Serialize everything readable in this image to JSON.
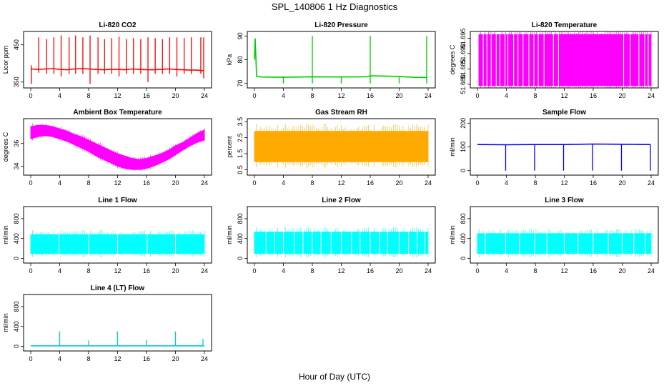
{
  "figure": {
    "title": "SPL_140806  1 Hz Diagnostics",
    "xlabel": "Hour of Day (UTC)"
  },
  "chart_data": [
    {
      "id": "co2",
      "type": "line",
      "title": "Li-820 CO2",
      "ylabel": "Licor ppm",
      "color": "#ff0000",
      "xlim": [
        0,
        24
      ],
      "xticks": [
        0,
        4,
        8,
        12,
        16,
        20,
        24
      ],
      "ylim": [
        340,
        480
      ],
      "yticks": [
        350,
        450
      ],
      "series": [
        {
          "x": [
            0,
            0.2,
            1,
            2,
            3,
            4,
            5,
            6,
            7,
            8,
            9,
            10,
            11,
            12,
            13,
            14,
            15,
            16,
            17,
            18,
            19,
            20,
            21,
            22,
            23,
            23.9
          ],
          "values": [
            385,
            385,
            384,
            385,
            386,
            384,
            383,
            385,
            386,
            385,
            384,
            383,
            384,
            384,
            383,
            385,
            384,
            383,
            383,
            384,
            385,
            384,
            383,
            382,
            382,
            380
          ]
        }
      ],
      "spikes": [
        {
          "x": 0.1,
          "high": 395,
          "low": 345
        },
        {
          "x": 1.1,
          "high": 470,
          "low": 375
        },
        {
          "x": 2.2,
          "high": 465,
          "low": 372
        },
        {
          "x": 3.2,
          "high": 470,
          "low": 372
        },
        {
          "x": 4.2,
          "high": 475,
          "low": 365
        },
        {
          "x": 5.3,
          "high": 470,
          "low": 372
        },
        {
          "x": 6.2,
          "high": 475,
          "low": 372
        },
        {
          "x": 7.2,
          "high": 470,
          "low": 372
        },
        {
          "x": 8.2,
          "high": 475,
          "low": 345
        },
        {
          "x": 9.3,
          "high": 470,
          "low": 372
        },
        {
          "x": 10.2,
          "high": 465,
          "low": 372
        },
        {
          "x": 11.2,
          "high": 468,
          "low": 372
        },
        {
          "x": 12.2,
          "high": 472,
          "low": 365
        },
        {
          "x": 13.2,
          "high": 465,
          "low": 372
        },
        {
          "x": 14.2,
          "high": 468,
          "low": 372
        },
        {
          "x": 15.2,
          "high": 465,
          "low": 372
        },
        {
          "x": 16.2,
          "high": 470,
          "low": 350
        },
        {
          "x": 17.2,
          "high": 468,
          "low": 372
        },
        {
          "x": 18.2,
          "high": 465,
          "low": 372
        },
        {
          "x": 19.2,
          "high": 470,
          "low": 372
        },
        {
          "x": 20.2,
          "high": 470,
          "low": 365
        },
        {
          "x": 21.2,
          "high": 468,
          "low": 372
        },
        {
          "x": 22.2,
          "high": 470,
          "low": 372
        },
        {
          "x": 23.5,
          "high": 470,
          "low": 372
        },
        {
          "x": 23.9,
          "high": 470,
          "low": 360
        }
      ]
    },
    {
      "id": "pressure",
      "type": "line",
      "title": "Li-820 Pressure",
      "ylabel": "kPa",
      "color": "#00cc00",
      "xlim": [
        0,
        24
      ],
      "xticks": [
        0,
        4,
        8,
        12,
        16,
        20,
        24
      ],
      "ylim": [
        69,
        91
      ],
      "yticks": [
        70,
        80,
        90
      ],
      "series": [
        {
          "x": [
            0,
            0.1,
            0.3,
            1,
            4,
            8,
            12,
            15.5,
            16,
            18,
            20,
            22,
            23.9
          ],
          "values": [
            80,
            89,
            73,
            72.7,
            72.6,
            72.8,
            72.7,
            72.8,
            73.2,
            73.1,
            72.9,
            72.6,
            72.5
          ]
        }
      ],
      "spikes": [
        {
          "x": 4,
          "high": 73,
          "low": 70
        },
        {
          "x": 8,
          "high": 90,
          "low": 70
        },
        {
          "x": 12,
          "high": 73,
          "low": 70
        },
        {
          "x": 16,
          "high": 90,
          "low": 70
        },
        {
          "x": 20,
          "high": 73,
          "low": 70
        },
        {
          "x": 23.8,
          "high": 90,
          "low": 70
        }
      ]
    },
    {
      "id": "li_temp",
      "type": "area",
      "title": "Li-820 Temperature",
      "ylabel": "degrees C",
      "color": "#ff00ff",
      "xlim": [
        0,
        24
      ],
      "xticks": [
        0,
        4,
        8,
        12,
        16,
        20,
        24
      ],
      "ylim": [
        51.6795,
        51.6965
      ],
      "yticks": [
        51.68,
        51.685,
        51.69,
        51.695
      ],
      "series": [
        {
          "x": [
            0.2,
            24
          ],
          "values": [
            51.6962,
            51.6962
          ]
        }
      ],
      "gaps": [
        0.8,
        1.3,
        1.9,
        2.6,
        3.1,
        3.8,
        4.2,
        5.0,
        5.6,
        6.3,
        7.1,
        7.8,
        8.4,
        9.2,
        10.5,
        11.2,
        20.2,
        21.1,
        22.3,
        23.1,
        23.6
      ]
    },
    {
      "id": "ambient",
      "type": "area",
      "title": "Ambient Box Temperature",
      "ylabel": "degrees C",
      "color": "#ff00ff",
      "xlim": [
        0,
        24
      ],
      "xticks": [
        0,
        4,
        8,
        12,
        16,
        20,
        24
      ],
      "ylim": [
        33.4,
        38.0
      ],
      "yticks": [
        34,
        36
      ],
      "series": [
        {
          "name": "upper",
          "x": [
            0,
            1,
            2,
            3,
            4,
            5,
            6,
            7,
            8,
            9,
            10,
            11,
            12,
            13,
            14,
            15,
            16,
            17,
            18,
            19,
            20,
            21,
            22,
            23,
            24
          ],
          "values": [
            37.5,
            37.6,
            37.6,
            37.5,
            37.3,
            37.1,
            36.8,
            36.6,
            36.3,
            36.0,
            35.7,
            35.4,
            35.1,
            34.9,
            34.7,
            34.6,
            34.7,
            34.9,
            35.1,
            35.4,
            35.8,
            36.1,
            36.5,
            36.9,
            37.2
          ]
        },
        {
          "name": "lower",
          "x": [
            0,
            1,
            2,
            3,
            4,
            5,
            6,
            7,
            8,
            9,
            10,
            11,
            12,
            13,
            14,
            15,
            16,
            17,
            18,
            19,
            20,
            21,
            22,
            23,
            24
          ],
          "values": [
            36.4,
            36.6,
            36.7,
            36.6,
            36.4,
            36.2,
            35.9,
            35.6,
            35.3,
            34.9,
            34.6,
            34.3,
            34.0,
            33.8,
            33.7,
            33.7,
            33.8,
            34.0,
            34.3,
            34.6,
            35.0,
            35.4,
            35.8,
            36.1,
            36.3
          ]
        }
      ]
    },
    {
      "id": "rh",
      "type": "area",
      "title": "Gas Stream RH",
      "ylabel": "percent",
      "color": "#ffaa00",
      "xlim": [
        0,
        24
      ],
      "xticks": [
        0,
        4,
        8,
        12,
        16,
        20,
        24
      ],
      "ylim": [
        0.3,
        3.55
      ],
      "yticks": [
        0.5,
        1.5,
        2.5,
        3.5
      ],
      "series": [
        {
          "name": "upper",
          "x": [
            0,
            24
          ],
          "values": [
            2.9,
            2.9
          ]
        },
        {
          "name": "lower",
          "x": [
            0,
            24
          ],
          "values": [
            1.0,
            1.0
          ]
        }
      ]
    },
    {
      "id": "sample_flow",
      "type": "line",
      "title": "Sample Flow",
      "ylabel": "ml/min",
      "color": "#0000ff",
      "xlim": [
        0,
        24
      ],
      "xticks": [
        0,
        4,
        8,
        12,
        16,
        20,
        24
      ],
      "ylim": [
        -10,
        210
      ],
      "yticks": [
        0,
        100,
        200
      ],
      "series": [
        {
          "x": [
            0,
            4,
            8,
            12,
            16,
            20,
            23.9
          ],
          "values": [
            110,
            109,
            110,
            110,
            112,
            111,
            110
          ]
        }
      ],
      "spikes": [
        {
          "x": 3.9,
          "high": 110,
          "low": 0
        },
        {
          "x": 7.9,
          "high": 110,
          "low": 0
        },
        {
          "x": 11.9,
          "high": 110,
          "low": 0
        },
        {
          "x": 15.9,
          "high": 110,
          "low": 0
        },
        {
          "x": 19.9,
          "high": 110,
          "low": 0
        },
        {
          "x": 23.9,
          "high": 110,
          "low": 0
        }
      ]
    },
    {
      "id": "line1",
      "type": "area",
      "title": "Line 1 Flow",
      "ylabel": "ml/min",
      "color": "#00ffff",
      "xlim": [
        0,
        24
      ],
      "xticks": [
        0,
        4,
        8,
        12,
        16,
        20,
        24
      ],
      "ylim": [
        -50,
        1000
      ],
      "yticks": [
        0,
        400,
        800
      ],
      "series": [
        {
          "name": "upper",
          "x": [
            0,
            24
          ],
          "values": [
            480,
            480
          ]
        },
        {
          "name": "lower",
          "x": [
            0,
            24
          ],
          "values": [
            100,
            100
          ]
        }
      ],
      "gaps": [
        3.9,
        8.0,
        12.0,
        16.1,
        20.0
      ]
    },
    {
      "id": "line2",
      "type": "area",
      "title": "Line 2 Flow",
      "ylabel": "ml/min",
      "color": "#00ffff",
      "xlim": [
        0,
        24
      ],
      "xticks": [
        0,
        4,
        8,
        12,
        16,
        20,
        24
      ],
      "ylim": [
        -50,
        1000
      ],
      "yticks": [
        0,
        400,
        800
      ],
      "series": [
        {
          "name": "upper",
          "x": [
            0,
            24
          ],
          "values": [
            530,
            530
          ]
        },
        {
          "name": "lower",
          "x": [
            0,
            24
          ],
          "values": [
            100,
            100
          ]
        }
      ],
      "gaps": [
        1.6,
        2.8,
        4.0,
        5.5,
        6.7,
        8.0,
        9.2,
        10.6,
        12.0,
        13.4,
        14.6,
        16.0,
        17.3,
        18.4,
        20.0,
        21.3,
        22.5,
        23.5
      ]
    },
    {
      "id": "line3",
      "type": "area",
      "title": "Line 3 Flow",
      "ylabel": "ml/min",
      "color": "#00ffff",
      "xlim": [
        0,
        24
      ],
      "xticks": [
        0,
        4,
        8,
        12,
        16,
        20,
        24
      ],
      "ylim": [
        -50,
        1000
      ],
      "yticks": [
        0,
        400,
        800
      ],
      "series": [
        {
          "name": "upper",
          "x": [
            0,
            24
          ],
          "values": [
            500,
            500
          ]
        },
        {
          "name": "lower",
          "x": [
            0,
            24
          ],
          "values": [
            100,
            100
          ]
        }
      ],
      "gaps": [
        1.1,
        3.9,
        5.8,
        7.9,
        9.6,
        12.0,
        13.9,
        16.0,
        18.1,
        20.0,
        21.6,
        23.2
      ]
    },
    {
      "id": "line4",
      "type": "line",
      "title": "Line 4 (LT) Flow",
      "ylabel": "ml/min",
      "color": "#00cccc",
      "xlim": [
        0,
        24
      ],
      "xticks": [
        0,
        4,
        8,
        12,
        16,
        20,
        24
      ],
      "ylim": [
        -50,
        1000
      ],
      "yticks": [
        0,
        400,
        800
      ],
      "series": [
        {
          "x": [
            0,
            24
          ],
          "values": [
            10,
            10
          ]
        }
      ],
      "spikes": [
        {
          "x": 4,
          "high": 300,
          "low": 10
        },
        {
          "x": 8,
          "high": 120,
          "low": 10
        },
        {
          "x": 12,
          "high": 300,
          "low": 10
        },
        {
          "x": 16,
          "high": 130,
          "low": 10
        },
        {
          "x": 20,
          "high": 300,
          "low": 10
        },
        {
          "x": 23.8,
          "high": 150,
          "low": 10
        }
      ]
    }
  ]
}
